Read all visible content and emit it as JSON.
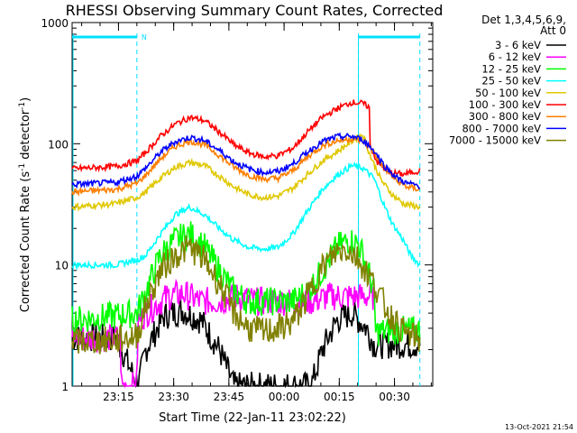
{
  "chart_data": {
    "type": "line",
    "title": "RHESSI Observing Summary Count Rates, Corrected",
    "ylabel_main": "Corrected Count Rate (s",
    "ylabel_exp1": "-1",
    "ylabel_mid": " detector",
    "ylabel_exp2": "-1",
    "ylabel_end": ")",
    "xlabel": "Start Time (22-Jan-11 23:02:22)",
    "footer": "13-Oct-2021 21:54",
    "y_scale": "log",
    "ylim": [
      1,
      1000
    ],
    "xlim_minutes": [
      0,
      98
    ],
    "y_ticks": [
      {
        "value": 1,
        "label": "1"
      },
      {
        "value": 10,
        "label": "10"
      },
      {
        "value": 100,
        "label": "100"
      },
      {
        "value": 1000,
        "label": "1000"
      }
    ],
    "x_ticks": [
      {
        "minute": 12.6,
        "label": "23:15"
      },
      {
        "minute": 27.6,
        "label": "23:30"
      },
      {
        "minute": 42.6,
        "label": "23:45"
      },
      {
        "minute": 57.6,
        "label": "00:00"
      },
      {
        "minute": 72.6,
        "label": "00:15"
      },
      {
        "minute": 87.6,
        "label": "00:30"
      }
    ],
    "legend_header": [
      "Det 1,3,4,5,6,9,",
      "Att 0"
    ],
    "legend_placement": "right",
    "attenuator_marker": "N",
    "night_intervals": [
      [
        0,
        17.6
      ],
      [
        77.8,
        94.5
      ]
    ],
    "gap_boundaries": [
      17.6,
      77.8,
      94.5
    ],
    "series": [
      {
        "name": "3 - 6 keV",
        "color": "#000000",
        "points": [
          [
            0,
            2.5
          ],
          [
            12,
            2.5
          ],
          [
            18,
            1
          ],
          [
            20,
            2
          ],
          [
            25,
            3.8
          ],
          [
            30,
            4.2
          ],
          [
            35,
            3.5
          ],
          [
            40,
            2
          ],
          [
            44,
            1
          ],
          [
            52,
            1
          ],
          [
            60,
            1
          ],
          [
            65,
            1
          ],
          [
            68,
            2
          ],
          [
            72,
            3.5
          ],
          [
            76,
            4
          ],
          [
            80,
            3
          ],
          [
            82,
            2.2
          ],
          [
            94.5,
            2.2
          ]
        ]
      },
      {
        "name": "6 - 12 keV",
        "color": "#ff00ff",
        "points": [
          [
            0,
            2.5
          ],
          [
            13,
            2.5
          ],
          [
            13.5,
            1
          ],
          [
            17.5,
            1
          ],
          [
            18,
            3.5
          ],
          [
            22,
            4.5
          ],
          [
            26,
            5.5
          ],
          [
            30,
            5.8
          ],
          [
            35,
            5
          ],
          [
            40,
            5
          ],
          [
            45,
            5.5
          ],
          [
            50,
            5
          ],
          [
            55,
            5
          ],
          [
            60,
            5
          ],
          [
            65,
            5
          ],
          [
            70,
            5.5
          ],
          [
            75,
            5.5
          ],
          [
            80,
            5.5
          ],
          [
            82,
            5.5
          ]
        ]
      },
      {
        "name": "12 - 25 keV",
        "color": "#00ff00",
        "points": [
          [
            0,
            3.5
          ],
          [
            12,
            3.8
          ],
          [
            17.6,
            4
          ],
          [
            20,
            6
          ],
          [
            24,
            12
          ],
          [
            28,
            16
          ],
          [
            32,
            18
          ],
          [
            36,
            14
          ],
          [
            40,
            9
          ],
          [
            44,
            6
          ],
          [
            48,
            5
          ],
          [
            52,
            5
          ],
          [
            56,
            5
          ],
          [
            60,
            5
          ],
          [
            64,
            6
          ],
          [
            68,
            9
          ],
          [
            72,
            14
          ],
          [
            75,
            16
          ],
          [
            77.8,
            15
          ],
          [
            80,
            10
          ],
          [
            82,
            6
          ],
          [
            82.5,
            2.8
          ],
          [
            90,
            2.9
          ],
          [
            94.5,
            2.9
          ]
        ]
      },
      {
        "name": "25 - 50 keV",
        "color": "#00ffff",
        "points": [
          [
            0,
            10
          ],
          [
            12,
            10
          ],
          [
            17.6,
            11
          ],
          [
            20,
            12
          ],
          [
            24,
            18
          ],
          [
            28,
            26
          ],
          [
            32,
            30
          ],
          [
            36,
            26
          ],
          [
            40,
            20
          ],
          [
            44,
            16
          ],
          [
            48,
            14
          ],
          [
            52,
            13.5
          ],
          [
            56,
            14
          ],
          [
            60,
            18
          ],
          [
            64,
            28
          ],
          [
            68,
            42
          ],
          [
            72,
            55
          ],
          [
            76,
            66
          ],
          [
            79,
            63
          ],
          [
            82,
            52
          ],
          [
            85,
            30
          ],
          [
            87,
            22
          ],
          [
            90,
            16
          ],
          [
            92,
            12
          ],
          [
            94.5,
            10
          ]
        ]
      },
      {
        "name": "50 - 100 keV",
        "color": "#e0c800",
        "points": [
          [
            0,
            30
          ],
          [
            12,
            32
          ],
          [
            17.6,
            36
          ],
          [
            20,
            40
          ],
          [
            24,
            52
          ],
          [
            28,
            64
          ],
          [
            32,
            70
          ],
          [
            36,
            66
          ],
          [
            40,
            54
          ],
          [
            44,
            44
          ],
          [
            48,
            38
          ],
          [
            52,
            36
          ],
          [
            56,
            37
          ],
          [
            60,
            43
          ],
          [
            64,
            56
          ],
          [
            68,
            72
          ],
          [
            72,
            86
          ],
          [
            76,
            105
          ],
          [
            79,
            120
          ],
          [
            81,
            80
          ],
          [
            84,
            50
          ],
          [
            87,
            38
          ],
          [
            90,
            32
          ],
          [
            94.5,
            30
          ]
        ]
      },
      {
        "name": "100 - 300 keV",
        "color": "#ff0000",
        "points": [
          [
            0,
            62
          ],
          [
            12,
            65
          ],
          [
            17.6,
            72
          ],
          [
            20,
            85
          ],
          [
            24,
            115
          ],
          [
            28,
            145
          ],
          [
            32,
            165
          ],
          [
            36,
            155
          ],
          [
            40,
            125
          ],
          [
            44,
            98
          ],
          [
            48,
            84
          ],
          [
            52,
            78
          ],
          [
            56,
            80
          ],
          [
            60,
            92
          ],
          [
            64,
            125
          ],
          [
            68,
            165
          ],
          [
            72,
            195
          ],
          [
            76,
            220
          ],
          [
            79,
            215
          ],
          [
            80.8,
            200
          ],
          [
            81,
            95
          ],
          [
            83,
            70
          ],
          [
            86,
            58
          ],
          [
            90,
            56
          ],
          [
            94.5,
            60
          ]
        ]
      },
      {
        "name": "300 - 800 keV",
        "color": "#ff7f00",
        "points": [
          [
            0,
            40
          ],
          [
            12,
            42
          ],
          [
            17.6,
            47
          ],
          [
            20,
            55
          ],
          [
            24,
            75
          ],
          [
            28,
            95
          ],
          [
            32,
            105
          ],
          [
            36,
            98
          ],
          [
            40,
            80
          ],
          [
            44,
            64
          ],
          [
            48,
            55
          ],
          [
            52,
            51
          ],
          [
            56,
            52
          ],
          [
            60,
            60
          ],
          [
            64,
            78
          ],
          [
            68,
            96
          ],
          [
            72,
            106
          ],
          [
            76,
            110
          ],
          [
            79,
            105
          ],
          [
            82,
            85
          ],
          [
            85,
            62
          ],
          [
            88,
            50
          ],
          [
            91,
            44
          ],
          [
            94.5,
            42
          ]
        ]
      },
      {
        "name": "800 - 7000 keV",
        "color": "#0000ff",
        "points": [
          [
            0,
            46
          ],
          [
            12,
            48
          ],
          [
            17.6,
            54
          ],
          [
            20,
            63
          ],
          [
            24,
            85
          ],
          [
            28,
            104
          ],
          [
            32,
            113
          ],
          [
            36,
            106
          ],
          [
            40,
            88
          ],
          [
            44,
            71
          ],
          [
            48,
            62
          ],
          [
            52,
            58
          ],
          [
            56,
            59
          ],
          [
            60,
            68
          ],
          [
            64,
            86
          ],
          [
            68,
            104
          ],
          [
            72,
            114
          ],
          [
            76,
            115
          ],
          [
            79,
            108
          ],
          [
            82,
            88
          ],
          [
            85,
            65
          ],
          [
            88,
            53
          ],
          [
            91,
            47
          ],
          [
            94.5,
            45
          ]
        ]
      },
      {
        "name": "7000 - 15000 keV",
        "color": "#808000",
        "points": [
          [
            0,
            2.3
          ],
          [
            12,
            2.4
          ],
          [
            17.6,
            2.6
          ],
          [
            20,
            4.5
          ],
          [
            24,
            9
          ],
          [
            28,
            12
          ],
          [
            32,
            14
          ],
          [
            36,
            11
          ],
          [
            40,
            7
          ],
          [
            44,
            4
          ],
          [
            48,
            3
          ],
          [
            52,
            2.8
          ],
          [
            56,
            3
          ],
          [
            60,
            3.4
          ],
          [
            64,
            5.5
          ],
          [
            68,
            9.5
          ],
          [
            72,
            13
          ],
          [
            75,
            13.5
          ],
          [
            78,
            11
          ],
          [
            82,
            7
          ],
          [
            86,
            4
          ],
          [
            90,
            2.8
          ],
          [
            94.5,
            2.4
          ]
        ]
      }
    ]
  }
}
